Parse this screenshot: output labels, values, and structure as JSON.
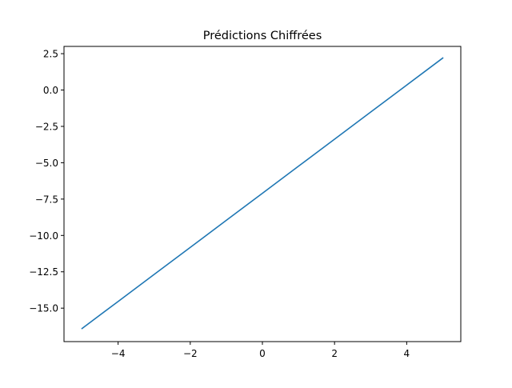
{
  "chart_data": {
    "type": "line",
    "title": "Prédictions Chiffrées",
    "xlabel": "",
    "ylabel": "",
    "xlim": [
      -5.5,
      5.5
    ],
    "ylim": [
      -17.3,
      3.0
    ],
    "x_ticks": [
      -4,
      -2,
      0,
      2,
      4
    ],
    "x_tick_labels": [
      "−4",
      "−2",
      "0",
      "2",
      "4"
    ],
    "y_ticks": [
      2.5,
      0.0,
      -2.5,
      -5.0,
      -7.5,
      -10.0,
      -12.5,
      -15.0
    ],
    "y_tick_labels": [
      "2.5",
      "0.0",
      "−2.5",
      "−5.0",
      "−7.5",
      "−10.0",
      "−12.5",
      "−15.0"
    ],
    "grid": false,
    "series": [
      {
        "color": "#1f77b4",
        "x": [
          -5,
          -4,
          -3,
          -2,
          -1,
          0,
          1,
          2,
          3,
          4,
          5
        ],
        "y": [
          -16.4,
          -14.54,
          -12.68,
          -10.82,
          -8.96,
          -7.1,
          -5.24,
          -3.38,
          -1.52,
          0.34,
          2.2
        ]
      }
    ]
  }
}
